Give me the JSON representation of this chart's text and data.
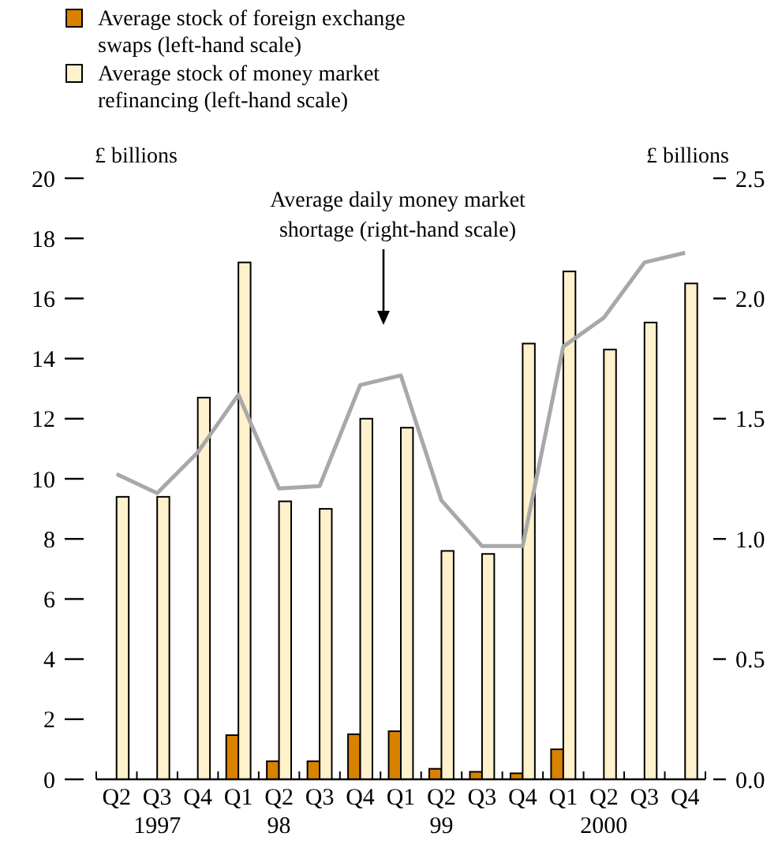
{
  "chart_data": {
    "type": "bar",
    "categories": [
      "Q2",
      "Q3\n1997",
      "Q4",
      "Q1",
      "Q2\n98",
      "Q3",
      "Q4",
      "Q1",
      "Q2\n99",
      "Q3",
      "Q4",
      "Q1",
      "Q2\n2000",
      "Q3",
      "Q4"
    ],
    "series": [
      {
        "name": "Average stock of foreign exchange swaps (left-hand scale)",
        "color": "#d98200",
        "values": [
          null,
          null,
          null,
          1.47,
          0.6,
          0.6,
          1.5,
          1.6,
          0.35,
          0.25,
          0.2,
          1.0,
          null,
          null,
          null
        ]
      },
      {
        "name": "Average stock of money market refinancing (left-hand scale)",
        "color": "#fff1cc",
        "values": [
          9.4,
          9.4,
          12.7,
          17.2,
          9.25,
          9.0,
          12.0,
          11.7,
          7.6,
          7.5,
          14.5,
          16.9,
          14.3,
          15.2,
          16.5
        ]
      },
      {
        "type": "line",
        "axis": "y2",
        "color": "#a8a8a8",
        "values": [
          1.27,
          1.19,
          1.36,
          1.6,
          1.21,
          1.22,
          1.64,
          1.68,
          1.16,
          0.97,
          0.97,
          1.8,
          1.92,
          2.15,
          2.19
        ]
      }
    ],
    "ylabel": "£ billions",
    "y2label": "£ billions",
    "ylim": [
      0,
      20
    ],
    "yticks": [
      0,
      2,
      4,
      6,
      8,
      10,
      12,
      14,
      16,
      18,
      20
    ],
    "y2lim": [
      0,
      2.5
    ],
    "y2ticks": [
      {
        "value": 0,
        "label": "0.0"
      },
      {
        "value": 0.5,
        "label": "0.5"
      },
      {
        "value": 1,
        "label": "1.0"
      },
      {
        "value": 1.5,
        "label": "1.5"
      },
      {
        "value": 2,
        "label": "2.0"
      },
      {
        "value": 2.5,
        "label": "2.5"
      }
    ],
    "annotations": [
      "Average daily money market\nshortage (right-hand scale)"
    ],
    "legend": "top left",
    "grid": false
  }
}
